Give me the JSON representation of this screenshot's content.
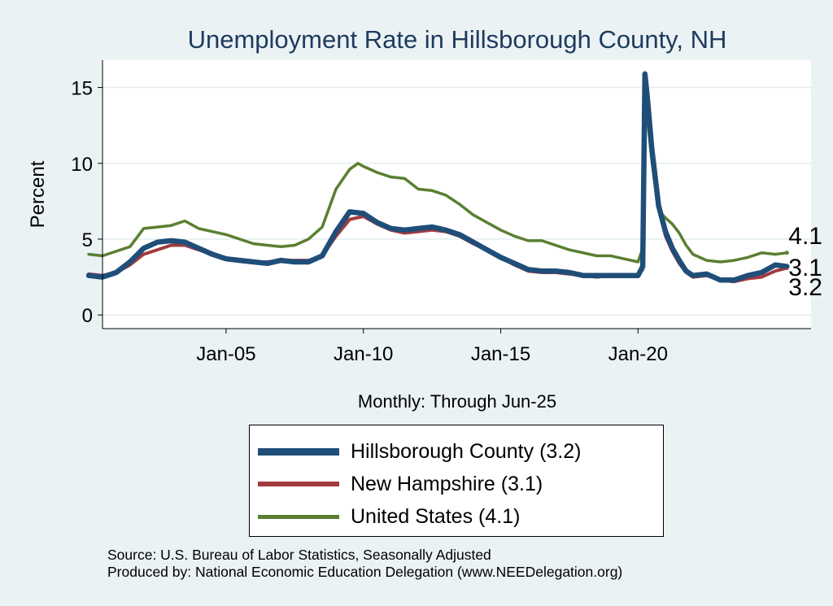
{
  "chart_data": {
    "type": "line",
    "title": "Unemployment Rate in Hillsborough  County, NH",
    "xlabel": "Monthly: Through Jun-25",
    "ylabel": "Percent",
    "xlim": [
      2000.5,
      2026.3
    ],
    "ylim": [
      -0.9,
      16.8
    ],
    "x_ticks": [
      {
        "value": 2005,
        "label": "Jan-05"
      },
      {
        "value": 2010,
        "label": "Jan-10"
      },
      {
        "value": 2015,
        "label": "Jan-15"
      },
      {
        "value": 2020,
        "label": "Jan-20"
      }
    ],
    "y_ticks": [
      {
        "value": 0,
        "label": "0"
      },
      {
        "value": 5,
        "label": "5"
      },
      {
        "value": 10,
        "label": "10"
      },
      {
        "value": 15,
        "label": "15"
      }
    ],
    "grid": "horizontal",
    "series": [
      {
        "name": "United States (4.1)",
        "color": "#5a7f31",
        "end_label": "4.1",
        "points": [
          [
            2000.0,
            4.0
          ],
          [
            2000.5,
            3.9
          ],
          [
            2001.0,
            4.2
          ],
          [
            2001.5,
            4.5
          ],
          [
            2002.0,
            5.7
          ],
          [
            2002.5,
            5.8
          ],
          [
            2003.0,
            5.9
          ],
          [
            2003.5,
            6.2
          ],
          [
            2004.0,
            5.7
          ],
          [
            2004.5,
            5.5
          ],
          [
            2005.0,
            5.3
          ],
          [
            2005.5,
            5.0
          ],
          [
            2006.0,
            4.7
          ],
          [
            2006.5,
            4.6
          ],
          [
            2007.0,
            4.5
          ],
          [
            2007.5,
            4.6
          ],
          [
            2008.0,
            5.0
          ],
          [
            2008.5,
            5.8
          ],
          [
            2009.0,
            8.3
          ],
          [
            2009.5,
            9.6
          ],
          [
            2009.8,
            10.0
          ],
          [
            2010.0,
            9.8
          ],
          [
            2010.5,
            9.4
          ],
          [
            2011.0,
            9.1
          ],
          [
            2011.5,
            9.0
          ],
          [
            2012.0,
            8.3
          ],
          [
            2012.5,
            8.2
          ],
          [
            2013.0,
            7.9
          ],
          [
            2013.5,
            7.3
          ],
          [
            2014.0,
            6.6
          ],
          [
            2014.5,
            6.1
          ],
          [
            2015.0,
            5.6
          ],
          [
            2015.5,
            5.2
          ],
          [
            2016.0,
            4.9
          ],
          [
            2016.5,
            4.9
          ],
          [
            2017.0,
            4.6
          ],
          [
            2017.5,
            4.3
          ],
          [
            2018.0,
            4.1
          ],
          [
            2018.5,
            3.9
          ],
          [
            2019.0,
            3.9
          ],
          [
            2019.5,
            3.7
          ],
          [
            2020.0,
            3.5
          ],
          [
            2020.17,
            4.4
          ],
          [
            2020.25,
            14.7
          ],
          [
            2020.33,
            13.2
          ],
          [
            2020.5,
            10.2
          ],
          [
            2020.75,
            6.9
          ],
          [
            2021.0,
            6.4
          ],
          [
            2021.25,
            6.0
          ],
          [
            2021.5,
            5.4
          ],
          [
            2021.75,
            4.6
          ],
          [
            2022.0,
            4.0
          ],
          [
            2022.5,
            3.6
          ],
          [
            2023.0,
            3.5
          ],
          [
            2023.5,
            3.6
          ],
          [
            2024.0,
            3.8
          ],
          [
            2024.5,
            4.1
          ],
          [
            2025.0,
            4.0
          ],
          [
            2025.42,
            4.1
          ]
        ]
      },
      {
        "name": "New Hampshire (3.1)",
        "color": "#a33a3e",
        "end_label": "3.1",
        "points": [
          [
            2000.0,
            2.7
          ],
          [
            2000.5,
            2.6
          ],
          [
            2001.0,
            2.8
          ],
          [
            2001.5,
            3.3
          ],
          [
            2002.0,
            4.0
          ],
          [
            2002.5,
            4.3
          ],
          [
            2003.0,
            4.6
          ],
          [
            2003.5,
            4.6
          ],
          [
            2004.0,
            4.3
          ],
          [
            2004.5,
            4.0
          ],
          [
            2005.0,
            3.7
          ],
          [
            2005.5,
            3.6
          ],
          [
            2006.0,
            3.5
          ],
          [
            2006.5,
            3.5
          ],
          [
            2007.0,
            3.6
          ],
          [
            2007.5,
            3.6
          ],
          [
            2008.0,
            3.6
          ],
          [
            2008.5,
            3.9
          ],
          [
            2009.0,
            5.2
          ],
          [
            2009.5,
            6.3
          ],
          [
            2010.0,
            6.5
          ],
          [
            2010.5,
            6.0
          ],
          [
            2011.0,
            5.6
          ],
          [
            2011.5,
            5.4
          ],
          [
            2012.0,
            5.5
          ],
          [
            2012.5,
            5.6
          ],
          [
            2013.0,
            5.5
          ],
          [
            2013.5,
            5.2
          ],
          [
            2014.0,
            4.7
          ],
          [
            2014.5,
            4.3
          ],
          [
            2015.0,
            3.8
          ],
          [
            2015.5,
            3.3
          ],
          [
            2016.0,
            2.9
          ],
          [
            2016.5,
            2.8
          ],
          [
            2017.0,
            2.8
          ],
          [
            2017.5,
            2.7
          ],
          [
            2018.0,
            2.6
          ],
          [
            2018.5,
            2.5
          ],
          [
            2019.0,
            2.6
          ],
          [
            2019.5,
            2.6
          ],
          [
            2020.0,
            2.6
          ],
          [
            2020.17,
            3.0
          ],
          [
            2020.25,
            15.5
          ],
          [
            2020.33,
            14.0
          ],
          [
            2020.5,
            10.5
          ],
          [
            2020.75,
            7.0
          ],
          [
            2021.0,
            5.2
          ],
          [
            2021.25,
            4.2
          ],
          [
            2021.5,
            3.4
          ],
          [
            2021.75,
            2.8
          ],
          [
            2022.0,
            2.5
          ],
          [
            2022.5,
            2.6
          ],
          [
            2023.0,
            2.3
          ],
          [
            2023.5,
            2.2
          ],
          [
            2024.0,
            2.4
          ],
          [
            2024.5,
            2.5
          ],
          [
            2025.0,
            2.9
          ],
          [
            2025.42,
            3.1
          ]
        ]
      },
      {
        "name": "Hillsborough  County (3.2)",
        "color": "#1f4e79",
        "end_label": "3.2",
        "points": [
          [
            2000.0,
            2.6
          ],
          [
            2000.5,
            2.5
          ],
          [
            2001.0,
            2.8
          ],
          [
            2001.5,
            3.5
          ],
          [
            2002.0,
            4.4
          ],
          [
            2002.5,
            4.8
          ],
          [
            2003.0,
            4.9
          ],
          [
            2003.5,
            4.8
          ],
          [
            2004.0,
            4.4
          ],
          [
            2004.5,
            4.0
          ],
          [
            2005.0,
            3.7
          ],
          [
            2005.5,
            3.6
          ],
          [
            2006.0,
            3.5
          ],
          [
            2006.5,
            3.4
          ],
          [
            2007.0,
            3.6
          ],
          [
            2007.5,
            3.5
          ],
          [
            2008.0,
            3.5
          ],
          [
            2008.5,
            3.9
          ],
          [
            2009.0,
            5.5
          ],
          [
            2009.5,
            6.8
          ],
          [
            2010.0,
            6.7
          ],
          [
            2010.5,
            6.1
          ],
          [
            2011.0,
            5.7
          ],
          [
            2011.5,
            5.6
          ],
          [
            2012.0,
            5.7
          ],
          [
            2012.5,
            5.8
          ],
          [
            2013.0,
            5.6
          ],
          [
            2013.5,
            5.3
          ],
          [
            2014.0,
            4.8
          ],
          [
            2014.5,
            4.3
          ],
          [
            2015.0,
            3.8
          ],
          [
            2015.5,
            3.4
          ],
          [
            2016.0,
            3.0
          ],
          [
            2016.5,
            2.9
          ],
          [
            2017.0,
            2.9
          ],
          [
            2017.5,
            2.8
          ],
          [
            2018.0,
            2.6
          ],
          [
            2018.5,
            2.6
          ],
          [
            2019.0,
            2.6
          ],
          [
            2019.5,
            2.6
          ],
          [
            2020.0,
            2.6
          ],
          [
            2020.17,
            3.2
          ],
          [
            2020.25,
            15.9
          ],
          [
            2020.33,
            14.5
          ],
          [
            2020.5,
            11.0
          ],
          [
            2020.75,
            7.2
          ],
          [
            2021.0,
            5.5
          ],
          [
            2021.25,
            4.4
          ],
          [
            2021.5,
            3.6
          ],
          [
            2021.75,
            2.9
          ],
          [
            2022.0,
            2.6
          ],
          [
            2022.5,
            2.7
          ],
          [
            2023.0,
            2.3
          ],
          [
            2023.5,
            2.3
          ],
          [
            2024.0,
            2.6
          ],
          [
            2024.5,
            2.8
          ],
          [
            2025.0,
            3.3
          ],
          [
            2025.42,
            3.2
          ]
        ]
      }
    ]
  },
  "legend": {
    "items": [
      {
        "label": "Hillsborough  County (3.2)",
        "color": "#1f4e79"
      },
      {
        "label": "New Hampshire (3.1)",
        "color": "#a33a3e"
      },
      {
        "label": "United States (4.1)",
        "color": "#5a7f31"
      }
    ]
  },
  "source": {
    "line1": "Source: U.S. Bureau of Labor Statistics, Seasonally Adjusted",
    "line2": "Produced by: National Economic Education Delegation (www.NEEDelegation.org)"
  }
}
